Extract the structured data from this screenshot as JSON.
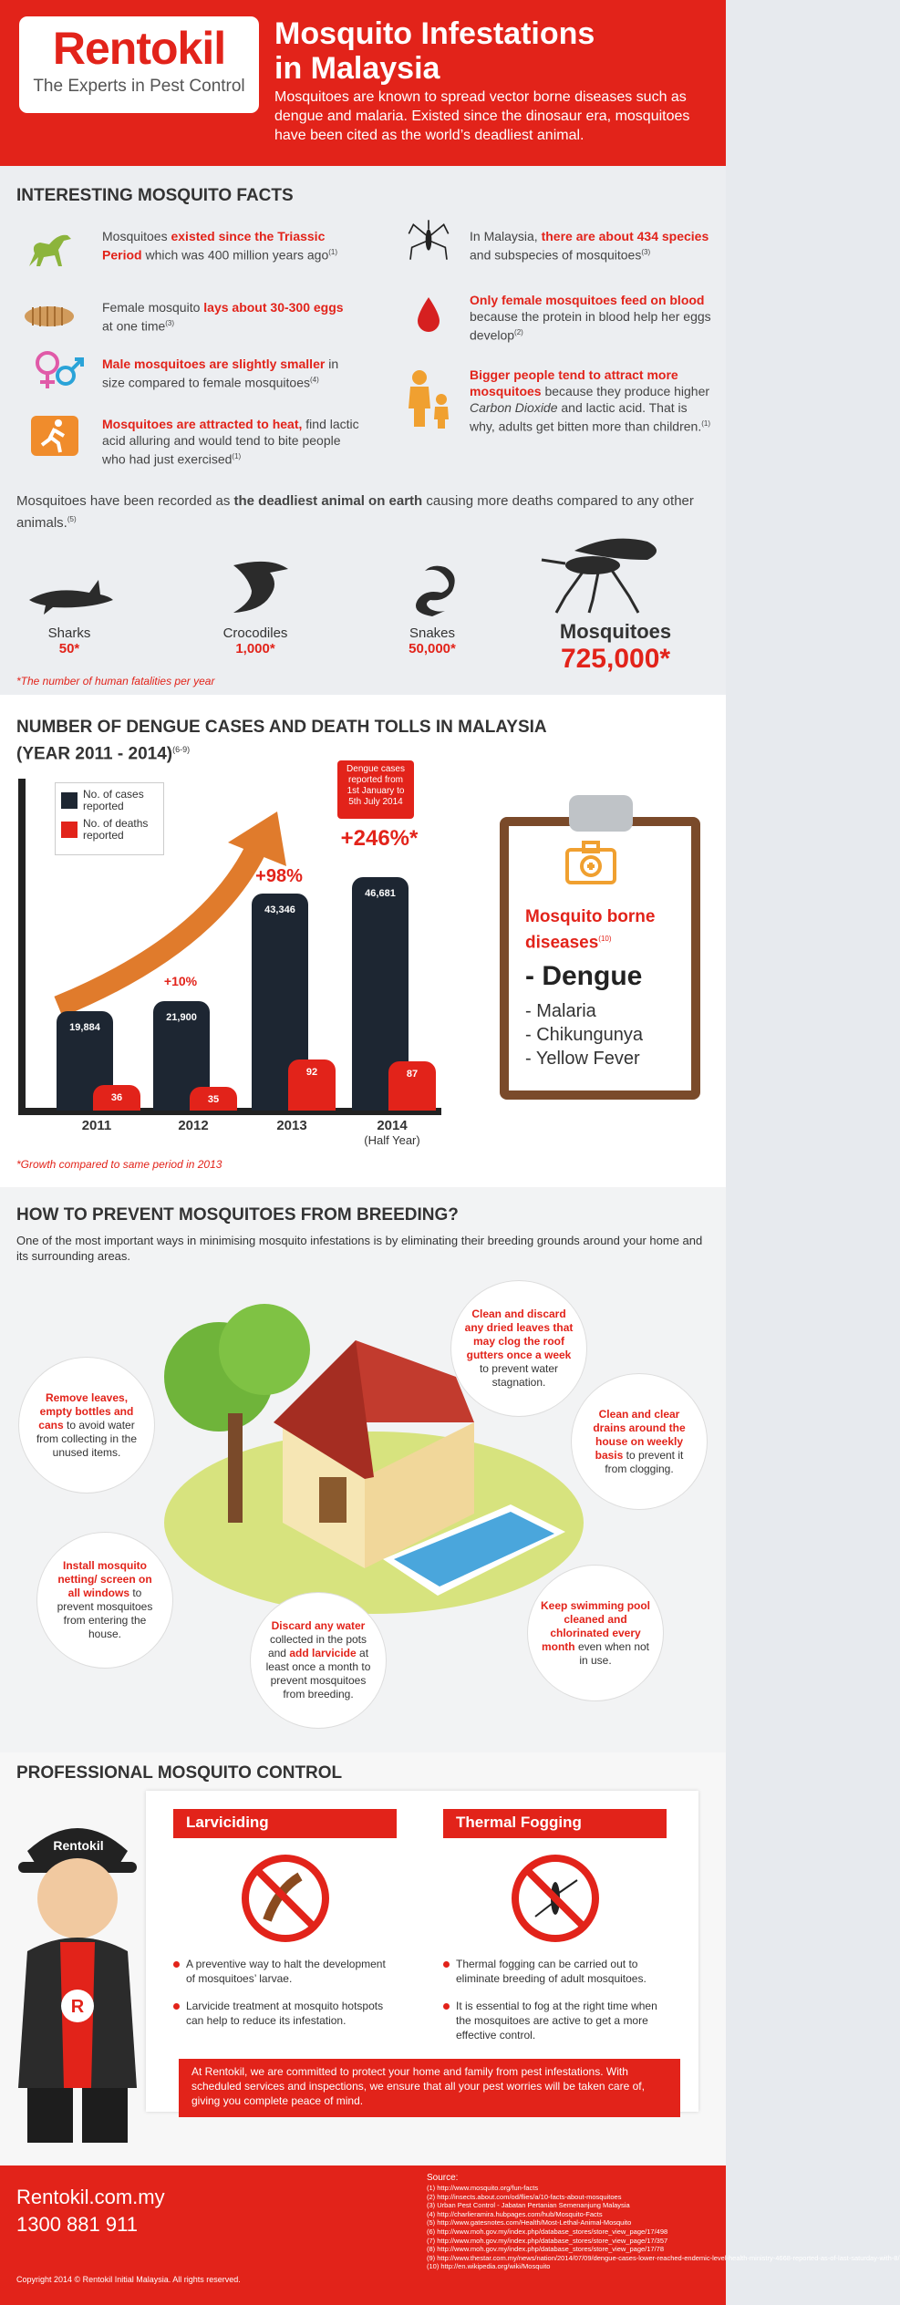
{
  "header": {
    "logo_word": "Rentokil",
    "logo_tagline": "The Experts in Pest Control",
    "title_line1": "Mosquito Infestations",
    "title_line2": "in Malaysia",
    "description": "Mosquitoes are known to spread vector borne diseases such as dengue and malaria. Existed since the dinosaur era, mosquitoes have been cited as the world’s deadliest animal."
  },
  "facts": {
    "section_title": "INTERESTING MOSQUITO FACTS",
    "f1_a": "Mosquitoes ",
    "f1_b": "existed since the Triassic Period",
    "f1_c": " which was 400 million years ago",
    "f1_sup": "(1)",
    "f2_a": "Female mosquito ",
    "f2_b": "lays about 30-300 eggs",
    "f2_c": " at one time",
    "f2_sup": "(3)",
    "f3_b": "Male mosquitoes are slightly smaller",
    "f3_c": " in size compared to female mosquitoes",
    "f3_sup": "(4)",
    "f4_b": "Mosquitoes are attracted to heat,",
    "f4_c": " find lactic acid alluring and would tend to bite people who had just exercised",
    "f4_sup": "(1)",
    "f5_a": "In Malaysia, ",
    "f5_b": "there are about 434 species",
    "f5_c": " and subspecies of mosquitoes",
    "f5_sup": "(3)",
    "f6_b": "Only female mosquitoes feed on blood",
    "f6_c": " because the protein in blood help her eggs develop",
    "f6_sup": "(2)",
    "f7_b": "Bigger people tend to attract more mosquitoes",
    "f7_c": " because they produce higher ",
    "f7_d": "Carbon Dioxide",
    "f7_e": " and lactic acid. That is why, adults get bitten more than children.",
    "f7_sup": "(1)",
    "deadliest_a": "Mosquitoes have been recorded as ",
    "deadliest_b": "the deadliest animal on earth",
    "deadliest_c": " causing more deaths compared to any other animals.",
    "deadliest_sup": "(5)",
    "animals": [
      {
        "name": "Sharks",
        "value": "50*"
      },
      {
        "name": "Crocodiles",
        "value": "1,000*"
      },
      {
        "name": "Snakes",
        "value": "50,000*"
      },
      {
        "name": "Mosquitoes",
        "value": "725,000*"
      }
    ],
    "footnote": "*The number of human fatalities per year"
  },
  "dengue": {
    "title_line1": "NUMBER OF DENGUE CASES AND DEATH TOLLS IN MALAYSIA",
    "title_line2": "(YEAR 2011 - 2014)",
    "title_sup": "(6-9)",
    "legend_cases": "No. of cases reported",
    "legend_deaths": "No. of deaths reported",
    "note": "Dengue cases reported from 1st January to 5th July 2014",
    "growth_note": "*Growth compared to same period in 2013",
    "colors": {
      "cases": "#1d2632",
      "deaths": "#e2231a"
    }
  },
  "chart_data": {
    "type": "bar",
    "categories": [
      "2011",
      "2012",
      "2013",
      "2014"
    ],
    "category_sublabels": [
      "",
      "",
      "",
      "(Half Year)"
    ],
    "series": [
      {
        "name": "No. of cases reported",
        "values": [
          19884,
          21900,
          43346,
          46681
        ],
        "labels": [
          "19,884",
          "21,900",
          "43,346",
          "46,681"
        ]
      },
      {
        "name": "No. of deaths reported",
        "values": [
          36,
          35,
          92,
          87
        ],
        "labels": [
          "36",
          "35",
          "92",
          "87"
        ]
      }
    ],
    "growth_labels": [
      "",
      "+10%",
      "+98%",
      "+246%*"
    ]
  },
  "diseases": {
    "title": "Mosquito borne diseases",
    "sup": "(10)",
    "items": [
      "Dengue",
      "Malaria",
      "Chikungunya",
      "Yellow Fever"
    ]
  },
  "prevent": {
    "section_title": "HOW TO PREVENT MOSQUITOES FROM BREEDING?",
    "intro": "One of the most important ways in minimising mosquito infestations is by eliminating their breeding grounds around your home and its surrounding areas.",
    "tips": [
      {
        "b": "Remove leaves, empty bottles and cans",
        "c": " to avoid water from collecting in the unused items."
      },
      {
        "b": "Clean and discard any dried leaves that may clog the roof gutters once a week",
        "c": " to prevent water stagnation."
      },
      {
        "b": "Clean and clear drains around the house on weekly basis",
        "c": " to prevent it from clogging."
      },
      {
        "b": "Install mosquito netting/ screen on all windows",
        "c": " to prevent mosquitoes from entering the house."
      },
      {
        "b": "Discard any water",
        "c": " collected in the pots and ",
        "d": "add larvicide",
        "e": " at least once a month to prevent mosquitoes from breeding."
      },
      {
        "b": "Keep swimming pool cleaned and chlorinated every month",
        "c": " even when not in use."
      }
    ]
  },
  "control": {
    "section_title": "PROFESSIONAL MOSQUITO CONTROL",
    "mascot_cap": "Rentokil",
    "larviciding": {
      "title": "Larviciding",
      "points": [
        "A preventive way to halt the development of mosquitoes’ larvae.",
        "Larvicide treatment at mosquito hotspots can help to reduce its infestation."
      ]
    },
    "fogging": {
      "title": "Thermal Fogging",
      "points": [
        "Thermal fogging can be carried out to eliminate breeding of adult mosquitoes.",
        "It is essential to fog at the right time when the mosquitoes are active to get a more effective control."
      ]
    },
    "commitment": "At Rentokil, we are committed to protect your home and family from pest infestations. With scheduled services and inspections, we ensure that all your pest worries will be taken care of, giving you complete peace of mind."
  },
  "footer": {
    "website": "Rentokil.com.my",
    "phone": "1300 881 911",
    "copyright": "Copyright 2014 © Rentokil Initial Malaysia. All rights reserved.",
    "source_title": "Source:",
    "sources": [
      "(1) http://www.mosquito.org/fun-facts",
      "(2) http://insects.about.com/od/flies/a/10-facts-about-mosquitoes",
      "(3) Urban Pest Control - Jabatan Pertanian Semenanjung Malaysia",
      "(4) http://charlieramira.hubpages.com/hub/Mosquito-Facts",
      "(5) http://www.gatesnotes.com/Health/Most-Lethal-Animal-Mosquito",
      "(6) http://www.moh.gov.my/index.php/database_stores/store_view_page/17/498",
      "(7) http://www.moh.gov.my/index.php/database_stores/store_view_page/17/357",
      "(8) http://www.moh.gov.my/index.php/database_stores/store_view_page/17/78",
      "(9) http://www.thestar.com.my/news/nation/2014/07/09/dengue-cases-lower-reached-endemic-level-health-ministry-4668-reported-as-of-last-saturday-with-8/",
      "(10) http://en.wikipedia.org/wiki/Mosquito"
    ]
  }
}
